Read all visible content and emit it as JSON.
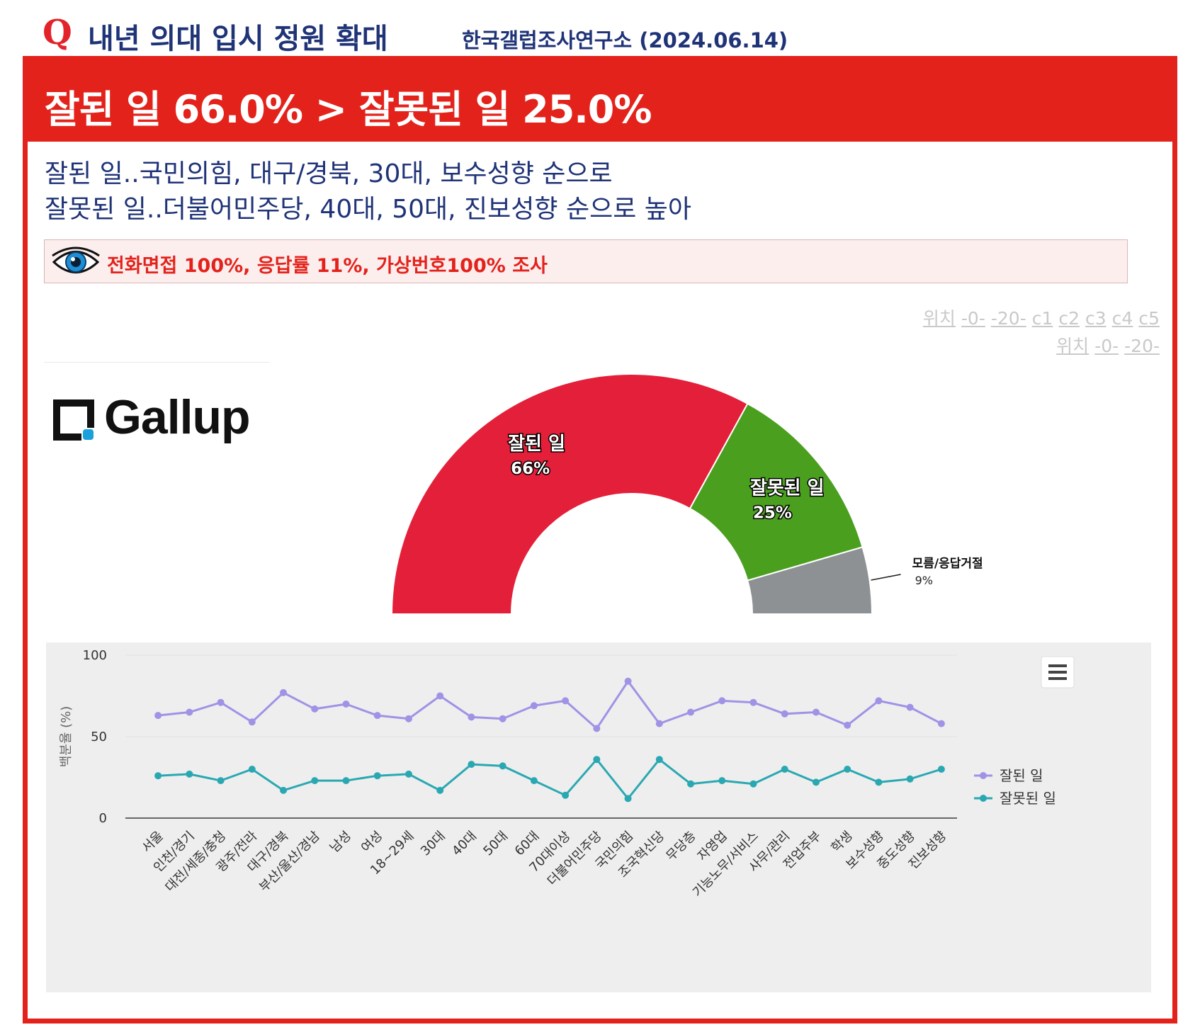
{
  "header": {
    "q_mark": "Q",
    "title": "내년 의대 입시 정원 확대",
    "source": "한국갤럽조사연구소 (2024.06.14)"
  },
  "banner": {
    "headline": "잘된 일 66.0% > 잘못된 일 25.0%"
  },
  "summary": {
    "line1": "잘된 일..국민의힘, 대구/경북, 30대, 보수성향 순으로",
    "line2": "잘못된 일..더불어민주당, 40대, 50대, 진보성향 순으로 높아"
  },
  "method": {
    "icon": "eye-icon",
    "text": "전화면접 100%, 응답률 11%, 가상번호100% 조사"
  },
  "position_links": {
    "row1": [
      "위치",
      "-0-",
      "-20-",
      "c1",
      "c2",
      "c3",
      "c4",
      "c5"
    ],
    "row2": [
      "위치",
      "-0-",
      "-20-"
    ]
  },
  "logo": {
    "text": "Gallup"
  },
  "colors": {
    "brand_red": "#e3231b",
    "navy": "#1f3377",
    "good": "#e41f3a",
    "bad": "#4a9f1f",
    "unknown": "#8e9193",
    "line_good": "#9f93e6",
    "line_bad": "#2aa8b2"
  },
  "chart_data": [
    {
      "type": "pie",
      "subtype": "semi-donut",
      "slices": [
        {
          "label": "잘된 일",
          "value": 66,
          "display": "66%",
          "color": "#e41f3a"
        },
        {
          "label": "잘못된 일",
          "value": 25,
          "display": "25%",
          "color": "#4a9f1f"
        },
        {
          "label": "모름/응답거절",
          "value": 9,
          "display": "9%",
          "color": "#8e9193"
        }
      ]
    },
    {
      "type": "line",
      "ylabel": "백분율 (%)",
      "ylim": [
        0,
        100
      ],
      "yticks": [
        0,
        50,
        100
      ],
      "grid": true,
      "legend_position": "right",
      "menu_icon": "hamburger-menu-icon",
      "categories": [
        "서울",
        "인천/경기",
        "대전/세종/충청",
        "광주/전라",
        "대구/경북",
        "부산/울산/경남",
        "남성",
        "여성",
        "18~29세",
        "30대",
        "40대",
        "50대",
        "60대",
        "70대이상",
        "더불어민주당",
        "국민의힘",
        "조국혁신당",
        "무당층",
        "자영업",
        "기능노무/서비스",
        "사무/관리",
        "전업주부",
        "학생",
        "보수성향",
        "중도성향",
        "진보성향"
      ],
      "series": [
        {
          "name": "잘된 일",
          "color": "#9f93e6",
          "values": [
            63,
            65,
            71,
            59,
            77,
            67,
            70,
            63,
            61,
            75,
            62,
            61,
            69,
            72,
            55,
            84,
            58,
            65,
            72,
            71,
            64,
            65,
            57,
            72,
            68,
            58
          ]
        },
        {
          "name": "잘못된 일",
          "color": "#2aa8b2",
          "values": [
            26,
            27,
            23,
            30,
            17,
            23,
            23,
            26,
            27,
            17,
            33,
            32,
            23,
            14,
            36,
            12,
            36,
            21,
            23,
            21,
            30,
            22,
            30,
            22,
            24,
            30
          ]
        }
      ]
    }
  ]
}
